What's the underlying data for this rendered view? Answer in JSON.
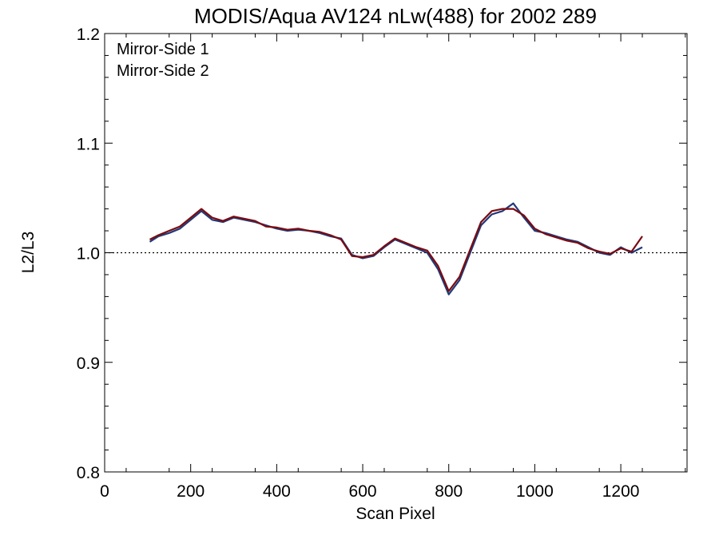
{
  "chart_data": {
    "type": "line",
    "title": "MODIS/Aqua AV124 nLw(488) for 2002 289",
    "xlabel": "Scan Pixel",
    "ylabel": "L2/L3",
    "xlim": [
      0,
      1354
    ],
    "ylim": [
      0.8,
      1.2
    ],
    "x_ticks": [
      "0",
      "200",
      "400",
      "600",
      "800",
      "1000",
      "1200"
    ],
    "y_ticks": [
      "0.8",
      "0.9",
      "1.0",
      "1.1",
      "1.2"
    ],
    "reference_line": {
      "y": 1.0,
      "style": "dotted"
    },
    "legend_position": "top-left",
    "colors": {
      "mirror_side_1": "#1f3a78",
      "mirror_side_2": "#7a0b12"
    },
    "series": [
      {
        "name": "Mirror-Side 1",
        "x": [
          105,
          125,
          150,
          175,
          200,
          225,
          250,
          275,
          300,
          325,
          350,
          375,
          400,
          425,
          450,
          475,
          500,
          525,
          550,
          575,
          600,
          625,
          650,
          675,
          700,
          725,
          750,
          775,
          800,
          825,
          850,
          875,
          900,
          925,
          950,
          975,
          1000,
          1025,
          1050,
          1075,
          1100,
          1125,
          1150,
          1175,
          1200,
          1225,
          1250
        ],
        "values": [
          1.01,
          1.015,
          1.018,
          1.022,
          1.03,
          1.038,
          1.03,
          1.028,
          1.032,
          1.03,
          1.028,
          1.025,
          1.022,
          1.02,
          1.021,
          1.02,
          1.018,
          1.015,
          1.013,
          0.998,
          0.995,
          0.997,
          1.005,
          1.012,
          1.008,
          1.004,
          1.0,
          0.985,
          0.962,
          0.975,
          1.0,
          1.025,
          1.035,
          1.038,
          1.045,
          1.032,
          1.02,
          1.018,
          1.015,
          1.012,
          1.01,
          1.005,
          1.0,
          0.998,
          1.005,
          1.0,
          1.005
        ]
      },
      {
        "name": "Mirror-Side 2",
        "x": [
          105,
          125,
          150,
          175,
          200,
          225,
          250,
          275,
          300,
          325,
          350,
          375,
          400,
          425,
          450,
          475,
          500,
          525,
          550,
          575,
          600,
          625,
          650,
          675,
          700,
          725,
          750,
          775,
          800,
          825,
          850,
          875,
          900,
          925,
          950,
          975,
          1000,
          1025,
          1050,
          1075,
          1100,
          1125,
          1150,
          1175,
          1200,
          1225,
          1250
        ],
        "values": [
          1.012,
          1.016,
          1.02,
          1.024,
          1.032,
          1.04,
          1.032,
          1.029,
          1.033,
          1.031,
          1.029,
          1.024,
          1.023,
          1.021,
          1.022,
          1.02,
          1.019,
          1.016,
          1.012,
          0.997,
          0.996,
          0.998,
          1.006,
          1.013,
          1.009,
          1.005,
          1.002,
          0.988,
          0.965,
          0.978,
          1.003,
          1.028,
          1.038,
          1.04,
          1.04,
          1.034,
          1.022,
          1.017,
          1.014,
          1.011,
          1.009,
          1.004,
          1.001,
          0.999,
          1.004,
          1.001,
          1.015
        ]
      }
    ]
  }
}
